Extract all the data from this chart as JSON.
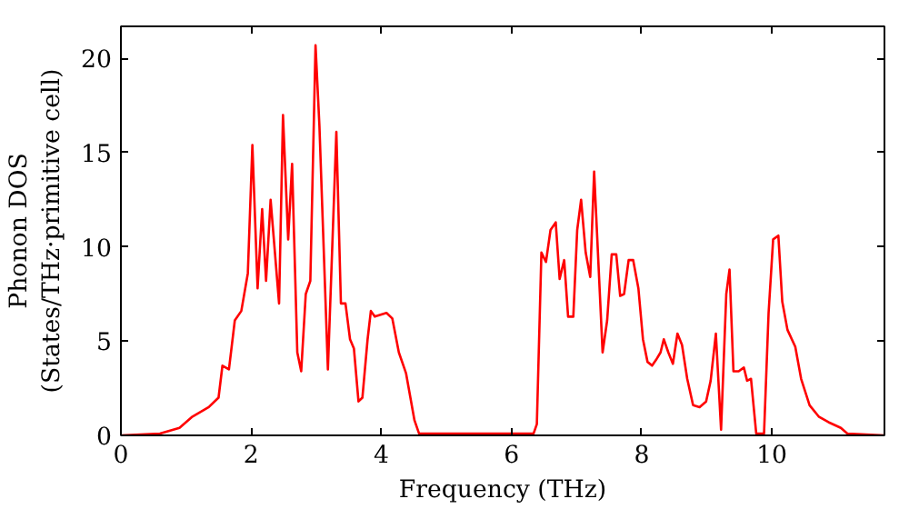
{
  "chart_data": {
    "type": "line",
    "xlabel": "Frequency (THz)",
    "ylabel": "Phonon DOS\n(States/THz·primitive cell)",
    "xlim": [
      0,
      11.73
    ],
    "ylim": [
      0,
      21.7
    ],
    "xticks": [
      0,
      2,
      4,
      6,
      8,
      10
    ],
    "yticks": [
      0,
      5,
      10,
      15,
      20
    ],
    "series": [
      {
        "color": "#ff0000",
        "x": [
          0,
          0.6,
          0.9,
          1.1,
          1.35,
          1.5,
          1.56,
          1.66,
          1.75,
          1.85,
          1.95,
          2.02,
          2.1,
          2.17,
          2.23,
          2.3,
          2.43,
          2.49,
          2.57,
          2.63,
          2.71,
          2.77,
          2.84,
          2.91,
          2.99,
          3.05,
          3.18,
          3.31,
          3.38,
          3.45,
          3.52,
          3.58,
          3.65,
          3.71,
          3.79,
          3.84,
          3.9,
          4.08,
          4.17,
          4.27,
          4.36,
          4.38,
          4.51,
          4.58,
          6.34,
          6.39,
          6.46,
          6.53,
          6.6,
          6.68,
          6.74,
          6.81,
          6.87,
          6.95,
          7.01,
          7.07,
          7.14,
          7.21,
          7.27,
          7.4,
          7.47,
          7.54,
          7.61,
          7.67,
          7.73,
          7.8,
          7.87,
          7.95,
          8.02,
          8.09,
          8.16,
          8.22,
          8.29,
          8.34,
          8.41,
          8.48,
          8.55,
          8.62,
          8.7,
          8.79,
          8.89,
          8.99,
          9.06,
          9.14,
          9.22,
          9.3,
          9.35,
          9.41,
          9.49,
          9.57,
          9.62,
          9.68,
          9.76,
          9.88,
          9.95,
          10.02,
          10.1,
          10.16,
          10.24,
          10.36,
          10.45,
          10.58,
          10.72,
          10.87,
          11.06,
          11.16,
          11.73
        ],
        "values": [
          0,
          0.1,
          0.4,
          1.0,
          1.5,
          2.0,
          3.7,
          3.5,
          6.1,
          6.6,
          8.6,
          15.4,
          7.8,
          12.0,
          8.2,
          12.5,
          7.0,
          17.0,
          10.4,
          14.4,
          4.4,
          3.4,
          7.5,
          8.2,
          20.7,
          16.4,
          3.5,
          16.1,
          7.0,
          7.0,
          5.1,
          4.6,
          1.8,
          2.0,
          5.1,
          6.6,
          6.3,
          6.5,
          6.2,
          4.4,
          3.5,
          3.3,
          0.8,
          0.1,
          0.1,
          0.6,
          9.7,
          9.2,
          10.9,
          11.3,
          8.3,
          9.3,
          6.3,
          6.3,
          10.9,
          12.5,
          9.7,
          8.4,
          14.0,
          4.4,
          6.1,
          9.6,
          9.6,
          7.4,
          7.5,
          9.3,
          9.3,
          7.8,
          5.1,
          3.9,
          3.7,
          4.0,
          4.4,
          5.1,
          4.4,
          3.8,
          5.4,
          4.8,
          3.0,
          1.6,
          1.5,
          1.8,
          2.9,
          5.4,
          0.3,
          7.5,
          8.8,
          3.4,
          3.4,
          3.6,
          2.9,
          3.0,
          0.1,
          0.1,
          6.5,
          10.4,
          10.6,
          7.1,
          5.6,
          4.7,
          3.0,
          1.6,
          1.0,
          0.7,
          0.4,
          0.1,
          0
        ]
      }
    ]
  }
}
